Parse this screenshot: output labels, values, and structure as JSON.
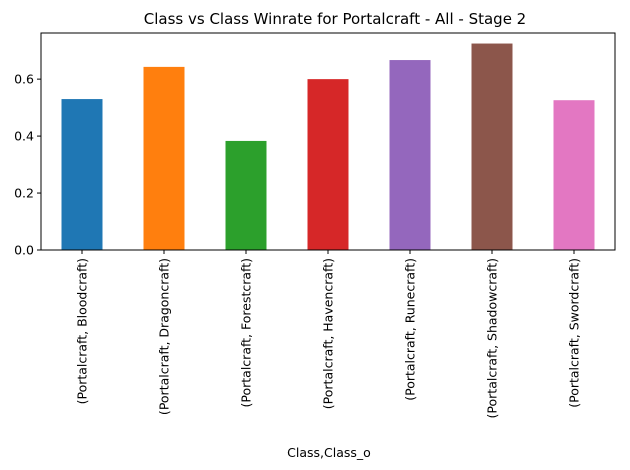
{
  "chart_data": {
    "type": "bar",
    "title": "Class vs Class Winrate for Portalcraft - All - Stage 2",
    "xlabel": "Class,Class_o",
    "ylabel": "",
    "categories": [
      "(Portalcraft, Bloodcraft)",
      "(Portalcraft, Dragoncraft)",
      "(Portalcraft, Forestcraft)",
      "(Portalcraft, Havencraft)",
      "(Portalcraft, Runecraft)",
      "(Portalcraft, Shadowcraft)",
      "(Portalcraft, Swordcraft)"
    ],
    "values": [
      0.53,
      0.643,
      0.383,
      0.6,
      0.667,
      0.725,
      0.526
    ],
    "colors": [
      "#1f77b4",
      "#ff7f0e",
      "#2ca02c",
      "#d62728",
      "#9467bd",
      "#8c564b",
      "#e377c2"
    ],
    "ylim": [
      0,
      0.762
    ],
    "yticks": [
      0.0,
      0.2,
      0.4,
      0.6
    ],
    "ytick_labels": [
      "0.0",
      "0.2",
      "0.4",
      "0.6"
    ],
    "grid": false,
    "legend": "none"
  }
}
